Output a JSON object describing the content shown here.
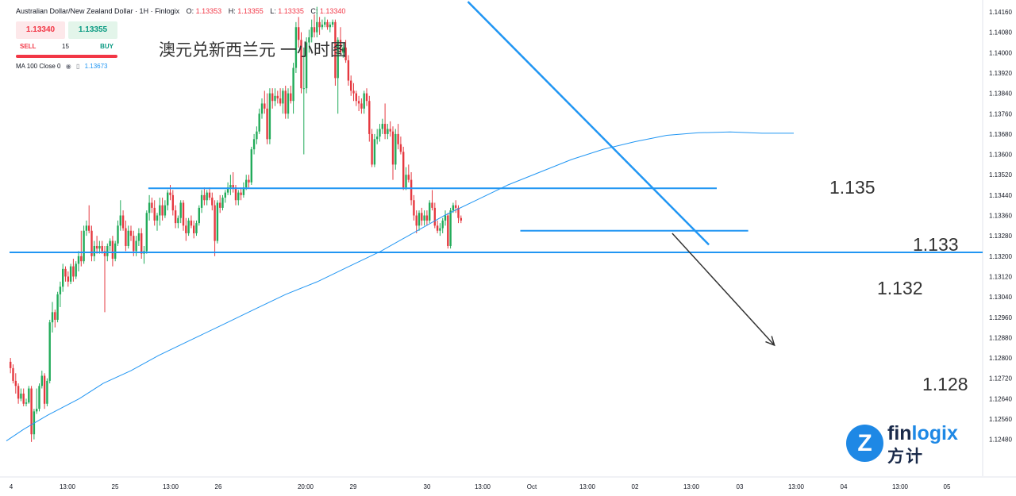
{
  "header": {
    "symbol": "Australian Dollar/New Zealand Dollar · 1H · Finlogix",
    "open_label": "O:",
    "open": "1.13353",
    "high_label": "H:",
    "high": "1.13355",
    "low_label": "L:",
    "low": "1.13335",
    "close_label": "C:",
    "close": "1.13340"
  },
  "trade": {
    "sell_price": "1.13340",
    "buy_price": "1.13355",
    "sell_label": "SELL",
    "buy_label": "BUY",
    "quantity": "15"
  },
  "indicator": {
    "label": "MA 100 Close 0",
    "value": "1.13673",
    "icons": [
      "eye-icon",
      "trash-icon"
    ]
  },
  "chart_title": "澳元兑新西兰元 一小时图",
  "levels": {
    "l1135": "1.135",
    "l1133": "1.133",
    "l1132": "1.132",
    "l1128": "1.128"
  },
  "logo": {
    "word_a": "fin",
    "word_b": "logix",
    "cn": "方计"
  },
  "colors": {
    "up": "#22ab5a",
    "down": "#e53940",
    "ma": "#2196f3",
    "lines": "#2196f3",
    "arrow": "#333333"
  },
  "chart_data": {
    "type": "candlestick",
    "y_ticks": [
      "1.14160",
      "1.14080",
      "1.14000",
      "1.13920",
      "1.13840",
      "1.13760",
      "1.13680",
      "1.13600",
      "1.13520",
      "1.13440",
      "1.13360",
      "1.13280",
      "1.13200",
      "1.13120",
      "1.13040",
      "1.12960",
      "1.12880",
      "1.12800",
      "1.12720",
      "1.12640",
      "1.12560",
      "1.12480"
    ],
    "x_ticks": [
      "4",
      "13:00",
      "25",
      "13:00",
      "26",
      "20:00",
      "29",
      "30",
      "13:00",
      "Oct",
      "13:00",
      "02",
      "13:00",
      "03",
      "13:00",
      "04",
      "13:00",
      "05"
    ],
    "ylim": [
      1.1246,
      1.1418
    ],
    "grid": false,
    "candles": [
      [
        1.12785,
        1.128,
        1.1274,
        1.1276
      ],
      [
        1.1276,
        1.12775,
        1.127,
        1.1271
      ],
      [
        1.1271,
        1.1274,
        1.1266,
        1.1269
      ],
      [
        1.1269,
        1.127,
        1.1262,
        1.1264
      ],
      [
        1.1264,
        1.1268,
        1.1263,
        1.1266
      ],
      [
        1.1266,
        1.1268,
        1.1261,
        1.1262
      ],
      [
        1.1262,
        1.1264,
        1.1261,
        1.12625
      ],
      [
        1.12625,
        1.1269,
        1.1262,
        1.1268
      ],
      [
        1.1268,
        1.1269,
        1.1247,
        1.125
      ],
      [
        1.125,
        1.126,
        1.1248,
        1.1259
      ],
      [
        1.1259,
        1.1268,
        1.1258,
        1.126
      ],
      [
        1.126,
        1.127,
        1.1259,
        1.1269
      ],
      [
        1.1269,
        1.1275,
        1.1268,
        1.1273
      ],
      [
        1.1273,
        1.1274,
        1.126,
        1.1262
      ],
      [
        1.1262,
        1.1272,
        1.1261,
        1.1271
      ],
      [
        1.1271,
        1.1295,
        1.127,
        1.1294
      ],
      [
        1.1294,
        1.1302,
        1.129,
        1.1298
      ],
      [
        1.1298,
        1.1299,
        1.1292,
        1.1295
      ],
      [
        1.1295,
        1.1306,
        1.1294,
        1.1305
      ],
      [
        1.1305,
        1.131,
        1.13,
        1.1308
      ],
      [
        1.1308,
        1.1317,
        1.1306,
        1.1315
      ],
      [
        1.1315,
        1.1316,
        1.131,
        1.1312
      ],
      [
        1.1312,
        1.1314,
        1.1308,
        1.131
      ],
      [
        1.131,
        1.1317,
        1.1309,
        1.1316
      ],
      [
        1.1316,
        1.1319,
        1.131,
        1.1312
      ],
      [
        1.1312,
        1.1318,
        1.1311,
        1.1317
      ],
      [
        1.1317,
        1.1322,
        1.1314,
        1.132
      ],
      [
        1.132,
        1.133,
        1.1316,
        1.1318
      ],
      [
        1.1318,
        1.1332,
        1.1317,
        1.133
      ],
      [
        1.133,
        1.1334,
        1.1328,
        1.1332
      ],
      [
        1.1332,
        1.134,
        1.1329,
        1.133
      ],
      [
        1.133,
        1.1332,
        1.1318,
        1.132
      ],
      [
        1.132,
        1.1326,
        1.1318,
        1.1324
      ],
      [
        1.1324,
        1.1328,
        1.1321,
        1.1323
      ],
      [
        1.1323,
        1.1326,
        1.1321,
        1.1324
      ],
      [
        1.1324,
        1.1326,
        1.1321,
        1.1322
      ],
      [
        1.1322,
        1.1324,
        1.1298,
        1.132
      ],
      [
        1.132,
        1.1325,
        1.1318,
        1.1324
      ],
      [
        1.1324,
        1.1327,
        1.1322,
        1.1326
      ],
      [
        1.1326,
        1.1328,
        1.1316,
        1.1319
      ],
      [
        1.1319,
        1.1326,
        1.1318,
        1.1325
      ],
      [
        1.1325,
        1.1334,
        1.1324,
        1.1332
      ],
      [
        1.1332,
        1.1342,
        1.133,
        1.1336
      ],
      [
        1.1336,
        1.1338,
        1.133,
        1.1331
      ],
      [
        1.1331,
        1.1334,
        1.1322,
        1.1324
      ],
      [
        1.1324,
        1.1332,
        1.1323,
        1.133
      ],
      [
        1.133,
        1.1332,
        1.1326,
        1.1328
      ],
      [
        1.1328,
        1.133,
        1.132,
        1.1322
      ],
      [
        1.1322,
        1.1328,
        1.132,
        1.1326
      ],
      [
        1.1326,
        1.1331,
        1.1324,
        1.1329
      ],
      [
        1.1329,
        1.1331,
        1.1319,
        1.1321
      ],
      [
        1.1321,
        1.1324,
        1.1317,
        1.1322
      ],
      [
        1.1322,
        1.1338,
        1.1321,
        1.1337
      ],
      [
        1.1337,
        1.1344,
        1.1334,
        1.1341
      ],
      [
        1.1341,
        1.1343,
        1.1337,
        1.1339
      ],
      [
        1.1339,
        1.1342,
        1.1332,
        1.1334
      ],
      [
        1.1334,
        1.1337,
        1.133,
        1.1336
      ],
      [
        1.1336,
        1.1343,
        1.1332,
        1.134
      ],
      [
        1.134,
        1.1343,
        1.1334,
        1.1336
      ],
      [
        1.1336,
        1.1342,
        1.1335,
        1.134
      ],
      [
        1.134,
        1.1346,
        1.1338,
        1.1345
      ],
      [
        1.1345,
        1.1348,
        1.1342,
        1.1344
      ],
      [
        1.1344,
        1.1346,
        1.1336,
        1.1338
      ],
      [
        1.1338,
        1.134,
        1.1331,
        1.1333
      ],
      [
        1.1333,
        1.1336,
        1.1331,
        1.1335
      ],
      [
        1.1335,
        1.1342,
        1.1333,
        1.1341
      ],
      [
        1.1341,
        1.1342,
        1.133,
        1.1332
      ],
      [
        1.1332,
        1.1335,
        1.1326,
        1.1329
      ],
      [
        1.1329,
        1.1335,
        1.1328,
        1.1334
      ],
      [
        1.1334,
        1.1336,
        1.1331,
        1.1332
      ],
      [
        1.1332,
        1.1334,
        1.1327,
        1.1329
      ],
      [
        1.1329,
        1.1334,
        1.1328,
        1.1333
      ],
      [
        1.1333,
        1.134,
        1.1332,
        1.1339
      ],
      [
        1.1339,
        1.1346,
        1.1337,
        1.1344
      ],
      [
        1.1344,
        1.1347,
        1.134,
        1.1342
      ],
      [
        1.1342,
        1.1346,
        1.134,
        1.1345
      ],
      [
        1.1345,
        1.1347,
        1.1342,
        1.1343
      ],
      [
        1.1343,
        1.1345,
        1.1338,
        1.134
      ],
      [
        1.134,
        1.1342,
        1.132,
        1.1326
      ],
      [
        1.1326,
        1.1342,
        1.1325,
        1.1341
      ],
      [
        1.1341,
        1.1344,
        1.1337,
        1.1339
      ],
      [
        1.1339,
        1.1344,
        1.1338,
        1.1343
      ],
      [
        1.1343,
        1.1346,
        1.1341,
        1.1345
      ],
      [
        1.1345,
        1.1349,
        1.1344,
        1.1347
      ],
      [
        1.1347,
        1.1352,
        1.1344,
        1.1348
      ],
      [
        1.1348,
        1.1353,
        1.1345,
        1.1347
      ],
      [
        1.1347,
        1.1348,
        1.134,
        1.1342
      ],
      [
        1.1342,
        1.1346,
        1.134,
        1.1345
      ],
      [
        1.1345,
        1.1347,
        1.1342,
        1.1344
      ],
      [
        1.1344,
        1.1349,
        1.1343,
        1.1347
      ],
      [
        1.1347,
        1.1352,
        1.1346,
        1.135
      ],
      [
        1.135,
        1.1352,
        1.1347,
        1.1349
      ],
      [
        1.1349,
        1.1363,
        1.1348,
        1.1362
      ],
      [
        1.1362,
        1.1368,
        1.136,
        1.1366
      ],
      [
        1.1366,
        1.1371,
        1.1364,
        1.1369
      ],
      [
        1.1369,
        1.1378,
        1.1368,
        1.1376
      ],
      [
        1.1376,
        1.1382,
        1.1374,
        1.138
      ],
      [
        1.138,
        1.1385,
        1.1376,
        1.1378
      ],
      [
        1.1378,
        1.1384,
        1.1364,
        1.1366
      ],
      [
        1.1366,
        1.1386,
        1.1364,
        1.1384
      ],
      [
        1.1384,
        1.1386,
        1.1378,
        1.1381
      ],
      [
        1.1381,
        1.1386,
        1.1379,
        1.1383
      ],
      [
        1.1383,
        1.1385,
        1.138,
        1.1382
      ],
      [
        1.1382,
        1.1386,
        1.1379,
        1.138
      ],
      [
        1.138,
        1.1386,
        1.1376,
        1.1385
      ],
      [
        1.1385,
        1.1387,
        1.1374,
        1.1376
      ],
      [
        1.1376,
        1.1386,
        1.1374,
        1.1384
      ],
      [
        1.1384,
        1.1387,
        1.138,
        1.1381
      ],
      [
        1.1381,
        1.1396,
        1.1376,
        1.1394
      ],
      [
        1.1394,
        1.1412,
        1.1392,
        1.141
      ],
      [
        1.141,
        1.1414,
        1.1402,
        1.1405
      ],
      [
        1.1405,
        1.1408,
        1.1384,
        1.1386
      ],
      [
        1.1386,
        1.1402,
        1.136,
        1.1386
      ],
      [
        1.1386,
        1.1406,
        1.1384,
        1.1404
      ],
      [
        1.1404,
        1.1409,
        1.14,
        1.1406
      ],
      [
        1.1406,
        1.1413,
        1.1404,
        1.141
      ],
      [
        1.141,
        1.1415,
        1.1406,
        1.1408
      ],
      [
        1.1408,
        1.1418,
        1.1406,
        1.1412
      ],
      [
        1.1412,
        1.1414,
        1.1407,
        1.141
      ],
      [
        1.141,
        1.1413,
        1.1409,
        1.1411
      ],
      [
        1.1411,
        1.1414,
        1.141,
        1.1412
      ],
      [
        1.1412,
        1.1413,
        1.1409,
        1.141
      ],
      [
        1.141,
        1.1412,
        1.1408,
        1.1411
      ],
      [
        1.1411,
        1.1413,
        1.141,
        1.1412
      ],
      [
        1.1412,
        1.1413,
        1.1387,
        1.139
      ],
      [
        1.139,
        1.1406,
        1.1376,
        1.1405
      ],
      [
        1.1405,
        1.141,
        1.1399,
        1.14
      ],
      [
        1.14,
        1.1404,
        1.1398,
        1.1402
      ],
      [
        1.1402,
        1.1405,
        1.1396,
        1.1397
      ],
      [
        1.1397,
        1.1399,
        1.1387,
        1.1389
      ],
      [
        1.1389,
        1.1391,
        1.1383,
        1.1385
      ],
      [
        1.1385,
        1.1388,
        1.1381,
        1.1384
      ],
      [
        1.1384,
        1.1385,
        1.1379,
        1.1381
      ],
      [
        1.1381,
        1.1383,
        1.1377,
        1.138
      ],
      [
        1.138,
        1.1382,
        1.1376,
        1.1378
      ],
      [
        1.1378,
        1.1385,
        1.1376,
        1.1384
      ],
      [
        1.1384,
        1.1386,
        1.1379,
        1.1381
      ],
      [
        1.1381,
        1.1383,
        1.1365,
        1.1368
      ],
      [
        1.1368,
        1.137,
        1.1355,
        1.1356
      ],
      [
        1.1356,
        1.1368,
        1.1355,
        1.1366
      ],
      [
        1.1366,
        1.137,
        1.1364,
        1.1367
      ],
      [
        1.1367,
        1.1372,
        1.1365,
        1.137
      ],
      [
        1.137,
        1.1374,
        1.1368,
        1.1372
      ],
      [
        1.1372,
        1.138,
        1.1366,
        1.1368
      ],
      [
        1.1368,
        1.1372,
        1.1366,
        1.137
      ],
      [
        1.137,
        1.1373,
        1.1367,
        1.1369
      ],
      [
        1.1369,
        1.1371,
        1.135,
        1.1356
      ],
      [
        1.1356,
        1.137,
        1.1354,
        1.1368
      ],
      [
        1.1368,
        1.1372,
        1.1362,
        1.1364
      ],
      [
        1.1364,
        1.1367,
        1.136,
        1.1361
      ],
      [
        1.1361,
        1.1363,
        1.1346,
        1.1347
      ],
      [
        1.1347,
        1.1355,
        1.1346,
        1.1352
      ],
      [
        1.1352,
        1.1356,
        1.1349,
        1.135
      ],
      [
        1.135,
        1.1353,
        1.134,
        1.1342
      ],
      [
        1.1342,
        1.1344,
        1.1334,
        1.1336
      ],
      [
        1.1336,
        1.1338,
        1.1329,
        1.1332
      ],
      [
        1.1332,
        1.1338,
        1.133,
        1.1337
      ],
      [
        1.1337,
        1.1339,
        1.1332,
        1.1334
      ],
      [
        1.1334,
        1.1338,
        1.1332,
        1.1336
      ],
      [
        1.1336,
        1.1338,
        1.1332,
        1.1334
      ],
      [
        1.1334,
        1.1342,
        1.1333,
        1.1341
      ],
      [
        1.1341,
        1.1346,
        1.1338,
        1.1339
      ],
      [
        1.1339,
        1.1341,
        1.1331,
        1.1332
      ],
      [
        1.1332,
        1.1334,
        1.1329,
        1.133
      ],
      [
        1.133,
        1.1333,
        1.1328,
        1.1331
      ],
      [
        1.1331,
        1.1335,
        1.1329,
        1.1334
      ],
      [
        1.1334,
        1.1338,
        1.1332,
        1.1336
      ],
      [
        1.1336,
        1.1337,
        1.1323,
        1.1324
      ],
      [
        1.1324,
        1.1339,
        1.1323,
        1.1338
      ],
      [
        1.1338,
        1.1341,
        1.1337,
        1.134
      ],
      [
        1.134,
        1.1342,
        1.1337,
        1.1339
      ],
      [
        1.1339,
        1.134,
        1.1333,
        1.1335
      ],
      [
        1.1335,
        1.1336,
        1.1333,
        1.1334
      ]
    ],
    "ma100": [
      [
        8,
        1.12474
      ],
      [
        30,
        1.1252
      ],
      [
        60,
        1.12575
      ],
      [
        100,
        1.1264
      ],
      [
        130,
        1.127
      ],
      [
        165,
        1.1275
      ],
      [
        200,
        1.1281
      ],
      [
        240,
        1.1287
      ],
      [
        280,
        1.1293
      ],
      [
        320,
        1.1299
      ],
      [
        360,
        1.1305
      ],
      [
        400,
        1.131
      ],
      [
        440,
        1.1316
      ],
      [
        480,
        1.1322
      ],
      [
        520,
        1.1329
      ],
      [
        560,
        1.1336
      ],
      [
        600,
        1.1342
      ],
      [
        640,
        1.1348
      ],
      [
        680,
        1.1353
      ],
      [
        720,
        1.1358
      ],
      [
        760,
        1.1362
      ],
      [
        800,
        1.1365
      ],
      [
        840,
        1.13675
      ],
      [
        880,
        1.13685
      ],
      [
        920,
        1.13688
      ],
      [
        960,
        1.13683
      ],
      [
        1000,
        1.13683
      ]
    ],
    "annotations": {
      "level_1135": {
        "price": 1.13467,
        "from_index": 53,
        "to_index": 270
      },
      "level_1133": {
        "price": 1.133,
        "from_index": 195,
        "to_index": 282
      },
      "level_1132": {
        "price": 1.13215,
        "from_index": 0,
        "to_index": 300
      },
      "trendline": {
        "from": [
          1.142,
          175
        ],
        "to": [
          1.13245,
          267
        ]
      },
      "arrow": {
        "from": [
          1.1329,
          253
        ],
        "to": [
          1.1285,
          292
        ]
      }
    }
  }
}
